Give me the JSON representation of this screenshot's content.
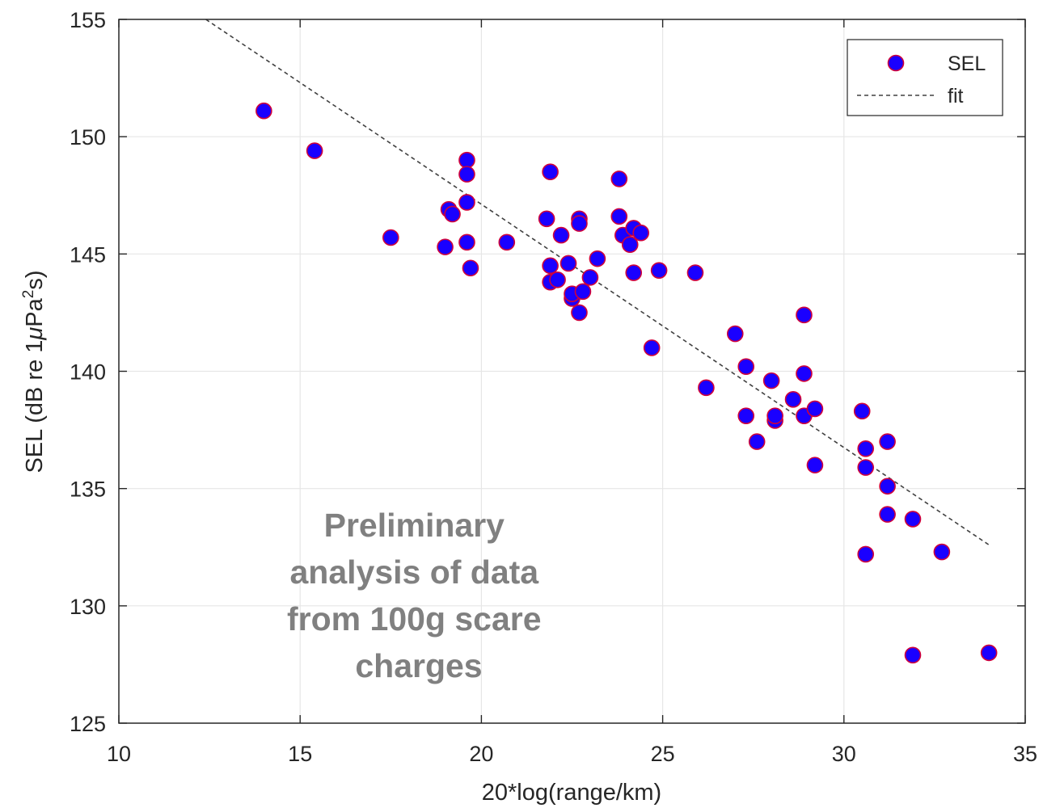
{
  "chart_data": {
    "type": "scatter",
    "xlabel": "20*log(range/km)",
    "ylabel": "SEL (dB re 1μPa²s)",
    "ylabel_parts": {
      "main": "SEL (dB re 1",
      "mu": "μ",
      "pa": "Pa",
      "sup": "2",
      "end": "s)"
    },
    "xlim": [
      10,
      35
    ],
    "ylim": [
      125,
      155
    ],
    "x_ticks": [
      10,
      15,
      20,
      25,
      30,
      35
    ],
    "y_ticks": [
      125,
      130,
      135,
      140,
      145,
      150,
      155
    ],
    "grid": true,
    "legend_position": "top-right",
    "legend": [
      {
        "label": "SEL",
        "kind": "marker"
      },
      {
        "label": "fit",
        "kind": "dashed-line"
      }
    ],
    "colors": {
      "marker_fill": "#1a00ff",
      "marker_edge": "#d0003a",
      "fit_line": "#404040",
      "grid": "#e6e6e6",
      "annotation": "#808080"
    },
    "annotation": [
      "Preliminary",
      "analysis of data",
      "from 100g scare",
      "charges"
    ],
    "series": [
      {
        "name": "SEL",
        "type": "scatter",
        "points": [
          [
            14.0,
            151.1
          ],
          [
            15.4,
            149.4
          ],
          [
            17.5,
            145.7
          ],
          [
            19.0,
            145.3
          ],
          [
            19.1,
            146.9
          ],
          [
            19.2,
            146.7
          ],
          [
            19.6,
            149.0
          ],
          [
            19.6,
            148.4
          ],
          [
            19.6,
            147.2
          ],
          [
            19.6,
            145.5
          ],
          [
            19.7,
            144.4
          ],
          [
            20.7,
            145.5
          ],
          [
            21.8,
            146.5
          ],
          [
            21.9,
            148.5
          ],
          [
            21.9,
            144.5
          ],
          [
            21.9,
            143.8
          ],
          [
            22.1,
            143.9
          ],
          [
            22.2,
            145.8
          ],
          [
            22.4,
            144.6
          ],
          [
            22.5,
            143.1
          ],
          [
            22.5,
            143.3
          ],
          [
            22.7,
            142.5
          ],
          [
            22.7,
            146.5
          ],
          [
            22.7,
            146.3
          ],
          [
            22.8,
            143.4
          ],
          [
            23.0,
            144.0
          ],
          [
            23.2,
            144.8
          ],
          [
            23.8,
            148.2
          ],
          [
            23.8,
            146.6
          ],
          [
            23.9,
            145.8
          ],
          [
            24.1,
            145.4
          ],
          [
            24.2,
            146.1
          ],
          [
            24.2,
            144.2
          ],
          [
            24.4,
            145.9
          ],
          [
            24.7,
            141.0
          ],
          [
            24.9,
            144.3
          ],
          [
            25.9,
            144.2
          ],
          [
            26.2,
            139.3
          ],
          [
            27.0,
            141.6
          ],
          [
            27.3,
            140.2
          ],
          [
            27.3,
            138.1
          ],
          [
            27.6,
            137.0
          ],
          [
            28.0,
            139.6
          ],
          [
            28.1,
            137.9
          ],
          [
            28.1,
            138.1
          ],
          [
            28.6,
            138.8
          ],
          [
            28.9,
            142.4
          ],
          [
            28.9,
            139.9
          ],
          [
            28.9,
            138.1
          ],
          [
            29.2,
            138.4
          ],
          [
            29.2,
            136.0
          ],
          [
            30.5,
            138.3
          ],
          [
            30.6,
            136.7
          ],
          [
            30.6,
            135.9
          ],
          [
            30.6,
            132.2
          ],
          [
            31.2,
            137.0
          ],
          [
            31.2,
            135.1
          ],
          [
            31.2,
            133.9
          ],
          [
            31.9,
            133.7
          ],
          [
            31.9,
            127.9
          ],
          [
            32.7,
            132.3
          ],
          [
            34.0,
            128.0
          ]
        ]
      },
      {
        "name": "fit",
        "type": "line",
        "points": [
          [
            12.4,
            155.0
          ],
          [
            34.0,
            132.6
          ]
        ]
      }
    ]
  }
}
